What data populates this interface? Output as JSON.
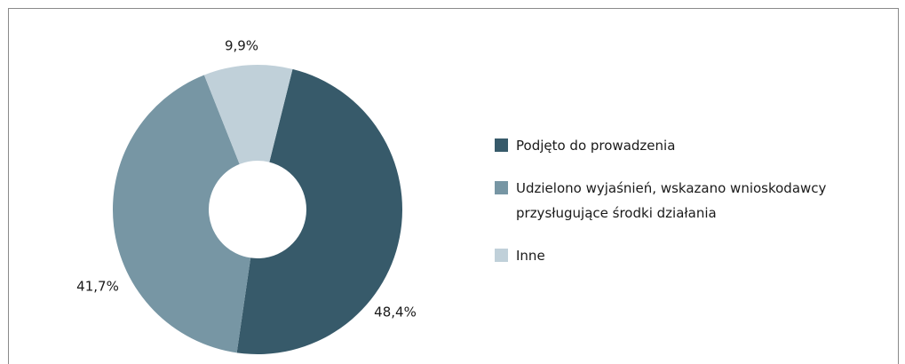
{
  "chart_data": {
    "type": "donut",
    "categories": [
      "Podjęto do prowadzenia",
      "Udzielono wyjaśnień, wskazano wnioskodawcy przysługujące środki działania",
      "Inne"
    ],
    "values": [
      48.4,
      41.7,
      9.9
    ],
    "value_labels": [
      "48,4%",
      "41,7%",
      "9,9%"
    ],
    "colors": [
      "#375a6a",
      "#7796a4",
      "#c0d0d9"
    ],
    "legend": "right"
  }
}
